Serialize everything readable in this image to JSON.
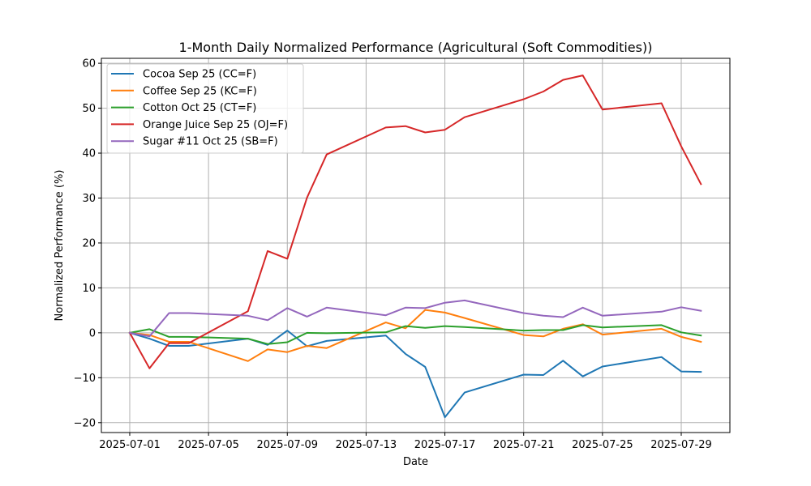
{
  "chart_data": {
    "type": "line",
    "title": "1-Month Daily Normalized Performance (Agricultural (Soft Commodities))",
    "xlabel": "Date",
    "ylabel": "Normalized Performance (%)",
    "grid": true,
    "legend_position": "top-left",
    "xlim": [
      "2025-06-29.56",
      "2025-07-31.47"
    ],
    "ylim": [
      -22.2,
      61.1
    ],
    "x_ticks": [
      "2025-07-01",
      "2025-07-05",
      "2025-07-09",
      "2025-07-13",
      "2025-07-17",
      "2025-07-21",
      "2025-07-25",
      "2025-07-29"
    ],
    "y_ticks": [
      -20,
      -10,
      0,
      10,
      20,
      30,
      40,
      50,
      60
    ],
    "y_tick_labels": [
      "−20",
      "−10",
      "0",
      "10",
      "20",
      "30",
      "40",
      "50",
      "60"
    ],
    "x": [
      "2025-07-01",
      "2025-07-02",
      "2025-07-03",
      "2025-07-04",
      "2025-07-07",
      "2025-07-08",
      "2025-07-09",
      "2025-07-10",
      "2025-07-11",
      "2025-07-14",
      "2025-07-15",
      "2025-07-16",
      "2025-07-17",
      "2025-07-18",
      "2025-07-21",
      "2025-07-22",
      "2025-07-23",
      "2025-07-24",
      "2025-07-25",
      "2025-07-28",
      "2025-07-29",
      "2025-07-30"
    ],
    "series": [
      {
        "name": "Cocoa Sep 25 (CC=F)",
        "color": "#1f77b4",
        "values": [
          0,
          -1.3,
          -2.9,
          -2.9,
          -1.3,
          -2.7,
          0.5,
          -3.0,
          -1.8,
          -0.6,
          -4.7,
          -7.6,
          -18.8,
          -13.3,
          -9.3,
          -9.4,
          -6.2,
          -9.7,
          -7.5,
          -5.4,
          -8.6,
          -8.7
        ]
      },
      {
        "name": "Coffee Sep 25 (KC=F)",
        "color": "#ff7f0e",
        "values": [
          0,
          -0.5,
          -2.0,
          -2.0,
          -6.3,
          -3.7,
          -4.3,
          -2.9,
          -3.4,
          2.3,
          1.0,
          5.1,
          4.5,
          3.3,
          -0.5,
          -0.8,
          0.9,
          1.9,
          -0.4,
          0.9,
          -0.9,
          -2.0
        ]
      },
      {
        "name": "Cotton Oct 25 (CT=F)",
        "color": "#2ca02c",
        "values": [
          0,
          0.8,
          -0.9,
          -0.9,
          -1.3,
          -2.5,
          -2.1,
          0.0,
          -0.1,
          0.1,
          1.5,
          1.1,
          1.5,
          1.3,
          0.5,
          0.6,
          0.6,
          1.7,
          1.2,
          1.7,
          0.1,
          -0.6
        ]
      },
      {
        "name": "Orange Juice Sep 25 (OJ=F)",
        "color": "#d62728",
        "values": [
          0,
          -7.9,
          -2.3,
          -2.3,
          4.8,
          18.2,
          16.5,
          30.1,
          39.7,
          45.7,
          46.0,
          44.6,
          45.2,
          48.0,
          52.0,
          53.7,
          56.3,
          57.3,
          49.7,
          51.1,
          41.5,
          33.1
        ]
      },
      {
        "name": "Sugar #11 Oct 25 (SB=F)",
        "color": "#9467bd",
        "values": [
          0,
          -0.8,
          4.4,
          4.4,
          3.8,
          2.8,
          5.5,
          3.6,
          5.6,
          3.9,
          5.6,
          5.5,
          6.7,
          7.2,
          4.4,
          3.8,
          3.5,
          5.6,
          3.8,
          4.7,
          5.7,
          4.9
        ]
      }
    ]
  }
}
